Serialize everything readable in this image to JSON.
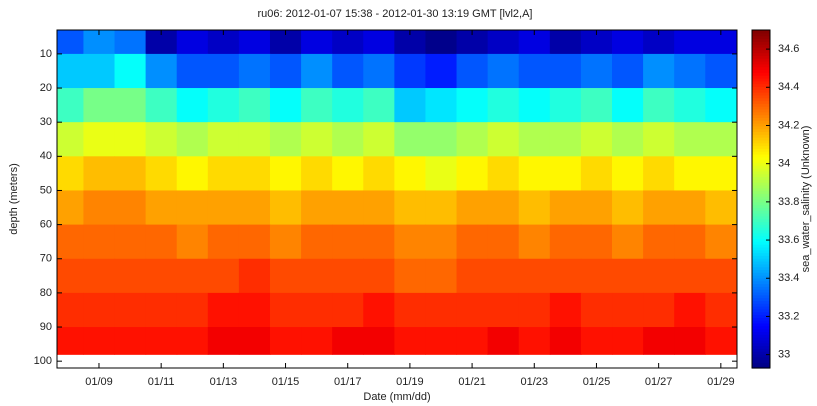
{
  "chart_data": {
    "type": "heatmap",
    "title": "ru06: 2012-01-07 15:38 - 2012-01-30 13:19 GMT [lvl2,A]",
    "x_label": "Date (mm/dd)",
    "y_label": "depth (meters)",
    "colorbar_label": "sea_water_salinity (Unknown)",
    "colormap": "jet",
    "xlim": [
      7.65,
      29.52
    ],
    "xticks": [
      {
        "value": 9,
        "label": "01/09"
      },
      {
        "value": 11,
        "label": "01/11"
      },
      {
        "value": 13,
        "label": "01/13"
      },
      {
        "value": 15,
        "label": "01/15"
      },
      {
        "value": 17,
        "label": "01/17"
      },
      {
        "value": 19,
        "label": "01/19"
      },
      {
        "value": 21,
        "label": "01/21"
      },
      {
        "value": 23,
        "label": "01/23"
      },
      {
        "value": 25,
        "label": "01/25"
      },
      {
        "value": 27,
        "label": "01/27"
      },
      {
        "value": 29,
        "label": "01/29"
      }
    ],
    "ylim": [
      3,
      102
    ],
    "y_inverted": true,
    "yticks": [
      10,
      20,
      30,
      40,
      50,
      60,
      70,
      80,
      90,
      100
    ],
    "clim": [
      32.93,
      34.7
    ],
    "cticks": [
      33,
      33.2,
      33.4,
      33.6,
      33.8,
      34,
      34.2,
      34.4,
      34.6
    ],
    "x_edges": [
      7.65,
      8.5,
      9.5,
      10.5,
      11.5,
      12.5,
      13.5,
      14.5,
      15.5,
      16.5,
      17.5,
      18.5,
      19.5,
      20.5,
      21.5,
      22.5,
      23.5,
      24.5,
      25.5,
      26.5,
      27.5,
      28.5,
      29.52
    ],
    "y_edges": [
      3,
      10,
      20,
      30,
      40,
      50,
      60,
      70,
      80,
      90,
      98
    ],
    "z": [
      [
        33.3,
        33.4,
        33.35,
        33.0,
        33.1,
        33.05,
        33.1,
        33.0,
        33.1,
        33.05,
        33.1,
        33.0,
        32.95,
        33.0,
        33.05,
        33.1,
        33.0,
        33.05,
        33.1,
        33.05,
        33.1,
        33.1
      ],
      [
        33.5,
        33.5,
        33.6,
        33.4,
        33.3,
        33.3,
        33.35,
        33.3,
        33.4,
        33.3,
        33.35,
        33.25,
        33.2,
        33.3,
        33.35,
        33.3,
        33.3,
        33.35,
        33.3,
        33.4,
        33.35,
        33.3
      ],
      [
        33.7,
        33.8,
        33.8,
        33.7,
        33.6,
        33.65,
        33.7,
        33.6,
        33.7,
        33.65,
        33.7,
        33.5,
        33.55,
        33.6,
        33.65,
        33.6,
        33.65,
        33.7,
        33.6,
        33.7,
        33.65,
        33.6
      ],
      [
        33.95,
        34.0,
        34.0,
        33.95,
        33.9,
        33.95,
        33.95,
        33.9,
        33.95,
        33.9,
        33.95,
        33.85,
        33.85,
        33.9,
        33.95,
        33.9,
        33.9,
        33.95,
        33.9,
        33.95,
        33.9,
        33.9
      ],
      [
        34.1,
        34.15,
        34.15,
        34.1,
        34.05,
        34.1,
        34.1,
        34.05,
        34.1,
        34.05,
        34.1,
        34.05,
        34.0,
        34.05,
        34.1,
        34.05,
        34.05,
        34.1,
        34.05,
        34.1,
        34.05,
        34.05
      ],
      [
        34.2,
        34.25,
        34.25,
        34.2,
        34.2,
        34.2,
        34.2,
        34.15,
        34.2,
        34.2,
        34.2,
        34.15,
        34.15,
        34.2,
        34.2,
        34.15,
        34.2,
        34.2,
        34.15,
        34.2,
        34.2,
        34.15
      ],
      [
        34.3,
        34.3,
        34.3,
        34.3,
        34.25,
        34.3,
        34.3,
        34.25,
        34.3,
        34.3,
        34.3,
        34.25,
        34.25,
        34.3,
        34.3,
        34.25,
        34.3,
        34.3,
        34.25,
        34.3,
        34.3,
        34.25
      ],
      [
        34.35,
        34.35,
        34.35,
        34.35,
        34.35,
        34.35,
        34.4,
        34.35,
        34.35,
        34.35,
        34.35,
        34.3,
        34.3,
        34.35,
        34.35,
        34.35,
        34.35,
        34.35,
        34.35,
        34.35,
        34.35,
        34.35
      ],
      [
        34.4,
        34.4,
        34.4,
        34.4,
        34.4,
        34.45,
        34.45,
        34.4,
        34.4,
        34.4,
        34.45,
        34.4,
        34.4,
        34.4,
        34.4,
        34.4,
        34.45,
        34.4,
        34.4,
        34.4,
        34.45,
        34.4
      ],
      [
        34.45,
        34.45,
        34.45,
        34.45,
        34.45,
        34.5,
        34.5,
        34.45,
        34.45,
        34.5,
        34.5,
        34.45,
        34.45,
        34.45,
        34.5,
        34.45,
        34.5,
        34.45,
        34.45,
        34.5,
        34.5,
        34.45
      ]
    ]
  }
}
